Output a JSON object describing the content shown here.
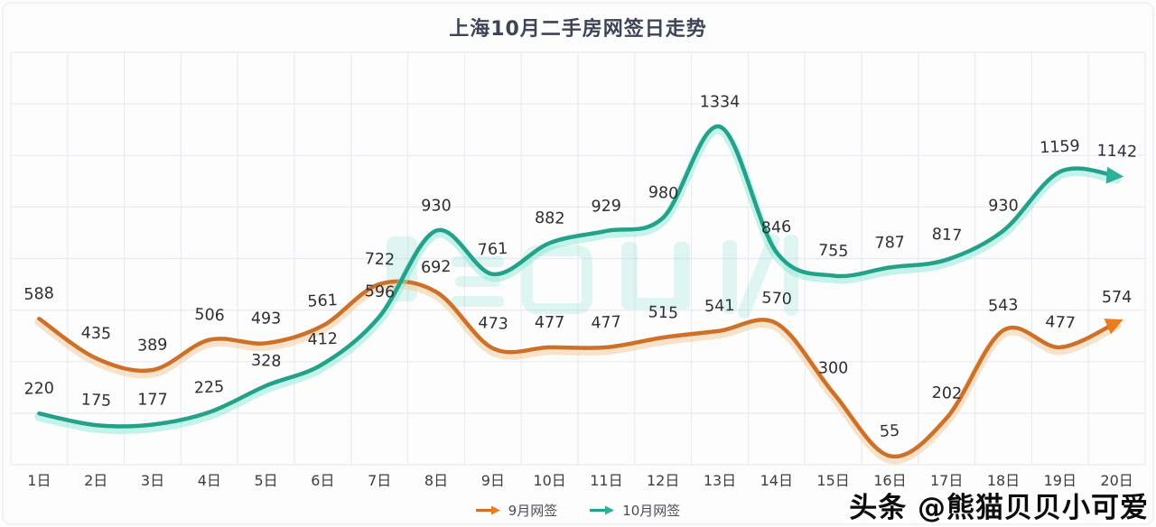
{
  "title": "上海10月二手房网签日走势",
  "chart_data": {
    "type": "line",
    "title": "上海10月二手房网签日走势",
    "categories": [
      "1日",
      "2日",
      "3日",
      "4日",
      "5日",
      "6日",
      "7日",
      "8日",
      "9日",
      "10日",
      "11日",
      "12日",
      "13日",
      "14日",
      "15日",
      "16日",
      "17日",
      "18日",
      "19日",
      "20日"
    ],
    "series": [
      {
        "name": "9月网签",
        "color": "#cf7029",
        "glow_color": "#f6c795",
        "arrow_color": "#ea7c1d",
        "values": [
          588,
          435,
          389,
          506,
          493,
          561,
          722,
          692,
          473,
          477,
          477,
          515,
          541,
          570,
          300,
          55,
          202,
          543,
          477,
          574
        ]
      },
      {
        "name": "10月网签",
        "color": "#23a189",
        "glow_color": "#8ce9d4",
        "arrow_color": "#2bb199",
        "values": [
          220,
          175,
          177,
          225,
          328,
          412,
          596,
          930,
          761,
          882,
          929,
          980,
          1334,
          846,
          755,
          787,
          817,
          930,
          1159,
          1142
        ]
      }
    ],
    "xlabel": "",
    "ylabel": "",
    "ylim": [
      0,
      1620
    ],
    "grid": true,
    "grid_color": "#e9eaf2",
    "label_color": "#2e2e33",
    "axis_label_color": "#3c3c42",
    "legend_position": "bottom"
  },
  "watermarks": {
    "center_brand_color": "#6cd8c4",
    "footer": "头条 @熊猫贝贝小可爱"
  }
}
